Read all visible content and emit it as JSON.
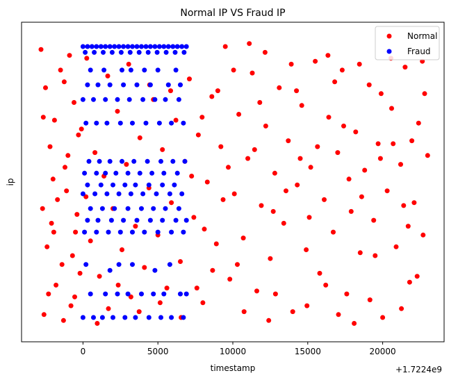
{
  "chart_data": {
    "type": "scatter",
    "title": "Normal IP VS Fraud IP",
    "xlabel": "timestamp",
    "ylabel": "ip",
    "x_offset_label": "+1.7224e9",
    "x_ticks": [
      "0",
      "5000",
      "10000",
      "15000",
      "20000"
    ],
    "xlim": [
      -4100,
      24100
    ],
    "y_ticks_shown": false,
    "grid": false,
    "legend": "top-right",
    "series": [
      {
        "name": "Normal",
        "color": "#ff0000",
        "points": [
          [
            -2800,
            0.95
          ],
          [
            -2500,
            0.82
          ],
          [
            -2200,
            0.62
          ],
          [
            -1900,
            0.71
          ],
          [
            -1500,
            0.88
          ],
          [
            -1200,
            0.55
          ],
          [
            -900,
            0.93
          ],
          [
            -600,
            0.77
          ],
          [
            -300,
            0.66
          ],
          [
            -2700,
            0.41
          ],
          [
            -2400,
            0.28
          ],
          [
            -2100,
            0.36
          ],
          [
            -1800,
            0.15
          ],
          [
            -1400,
            0.22
          ],
          [
            -1100,
            0.47
          ],
          [
            -800,
            0.08
          ],
          [
            -500,
            0.33
          ],
          [
            -200,
            0.19
          ],
          [
            -2600,
            0.05
          ],
          [
            -2300,
            0.12
          ],
          [
            -2000,
            0.51
          ],
          [
            -1700,
            0.44
          ],
          [
            -1300,
            0.03
          ],
          [
            -1000,
            0.59
          ],
          [
            -700,
            0.25
          ],
          [
            -400,
            0.39
          ],
          [
            -100,
            0.68
          ],
          [
            200,
            0.45
          ],
          [
            500,
            0.3
          ],
          [
            800,
            0.6
          ],
          [
            1100,
            0.18
          ],
          [
            1400,
            0.52
          ],
          [
            1700,
            0.07
          ],
          [
            2000,
            0.41
          ],
          [
            2300,
            0.74
          ],
          [
            2600,
            0.27
          ],
          [
            2900,
            0.56
          ],
          [
            3200,
            0.11
          ],
          [
            3500,
            0.35
          ],
          [
            3800,
            0.65
          ],
          [
            4100,
            0.21
          ],
          [
            4400,
            0.48
          ],
          [
            4700,
            0.78
          ],
          [
            5000,
            0.32
          ],
          [
            5300,
            0.61
          ],
          [
            5600,
            0.14
          ],
          [
            5900,
            0.43
          ],
          [
            6200,
            0.71
          ],
          [
            6500,
            0.23
          ],
          [
            6800,
            0.57
          ],
          [
            7100,
            0.85
          ],
          [
            7400,
            0.38
          ],
          [
            7700,
            0.66
          ],
          [
            8000,
            0.09
          ],
          [
            8300,
            0.5
          ],
          [
            8600,
            0.79
          ],
          [
            8900,
            0.29
          ],
          [
            9200,
            0.62
          ],
          [
            9500,
            0.96
          ],
          [
            9800,
            0.17
          ],
          [
            10100,
            0.46
          ],
          [
            10400,
            0.73
          ],
          [
            10700,
            0.31
          ],
          [
            11000,
            0.58
          ],
          [
            11300,
            0.87
          ],
          [
            11600,
            0.13
          ],
          [
            11900,
            0.42
          ],
          [
            12200,
            0.69
          ],
          [
            12500,
            0.24
          ],
          [
            12800,
            0.53
          ],
          [
            13100,
            0.82
          ],
          [
            13400,
            0.36
          ],
          [
            13700,
            0.64
          ],
          [
            14000,
            0.06
          ],
          [
            14300,
            0.49
          ],
          [
            14600,
            0.76
          ],
          [
            14900,
            0.27
          ],
          [
            15200,
            0.55
          ],
          [
            15500,
            0.91
          ],
          [
            15800,
            0.19
          ],
          [
            16100,
            0.44
          ],
          [
            16400,
            0.72
          ],
          [
            16700,
            0.33
          ],
          [
            17000,
            0.6
          ],
          [
            17300,
            0.88
          ],
          [
            17600,
            0.12
          ],
          [
            17900,
            0.4
          ],
          [
            18200,
            0.67
          ],
          [
            18500,
            0.26
          ],
          [
            18800,
            0.54
          ],
          [
            19100,
            0.83
          ],
          [
            19400,
            0.37
          ],
          [
            19700,
            0.63
          ],
          [
            20000,
            0.04
          ],
          [
            20300,
            0.47
          ],
          [
            20600,
            0.75
          ],
          [
            20900,
            0.28
          ],
          [
            21200,
            0.56
          ],
          [
            21500,
            0.89
          ],
          [
            21800,
            0.16
          ],
          [
            22100,
            0.43
          ],
          [
            22400,
            0.7
          ],
          [
            22700,
            0.32
          ],
          [
            23000,
            0.59
          ],
          [
            -2650,
            0.72
          ],
          [
            -1950,
            0.33
          ],
          [
            -1250,
            0.84
          ],
          [
            -550,
            0.11
          ],
          [
            250,
            0.92
          ],
          [
            950,
            0.02
          ],
          [
            1650,
            0.86
          ],
          [
            2350,
            0.15
          ],
          [
            3050,
            0.9
          ],
          [
            3750,
            0.06
          ],
          [
            4450,
            0.83
          ],
          [
            5150,
            0.09
          ],
          [
            5850,
            0.81
          ],
          [
            6550,
            0.04
          ],
          [
            7250,
            0.52
          ],
          [
            7950,
            0.72
          ],
          [
            8650,
            0.2
          ],
          [
            9350,
            0.44
          ],
          [
            10050,
            0.88
          ],
          [
            10750,
            0.06
          ],
          [
            11450,
            0.61
          ],
          [
            12150,
            0.94
          ],
          [
            12850,
            0.12
          ],
          [
            13550,
            0.47
          ],
          [
            14250,
            0.81
          ],
          [
            14950,
            0.08
          ],
          [
            15650,
            0.62
          ],
          [
            16350,
            0.93
          ],
          [
            17050,
            0.05
          ],
          [
            17750,
            0.51
          ],
          [
            18450,
            0.9
          ],
          [
            19150,
            0.1
          ],
          [
            19850,
            0.58
          ],
          [
            20550,
            0.92
          ],
          [
            21250,
            0.07
          ],
          [
            21950,
            0.64
          ],
          [
            22650,
            0.91
          ],
          [
            8100,
            0.34
          ],
          [
            9000,
            0.81
          ],
          [
            10300,
            0.22
          ],
          [
            11800,
            0.77
          ],
          [
            12700,
            0.4
          ],
          [
            13900,
            0.9
          ],
          [
            15100,
            0.38
          ],
          [
            16200,
            0.15
          ],
          [
            17400,
            0.69
          ],
          [
            18600,
            0.45
          ],
          [
            19500,
            0.25
          ],
          [
            20700,
            0.63
          ],
          [
            21700,
            0.35
          ],
          [
            22800,
            0.8
          ],
          [
            7600,
            0.14
          ],
          [
            9700,
            0.55
          ],
          [
            11100,
            0.97
          ],
          [
            12400,
            0.03
          ],
          [
            14500,
            0.58
          ],
          [
            16800,
            0.84
          ],
          [
            18100,
            0.02
          ],
          [
            19900,
            0.8
          ],
          [
            21400,
            0.42
          ],
          [
            22300,
            0.18
          ]
        ]
      },
      {
        "name": "Fraud",
        "color": "#0000ff",
        "points": [
          [
            0,
            0.96
          ],
          [
            300,
            0.96
          ],
          [
            600,
            0.96
          ],
          [
            900,
            0.96
          ],
          [
            1200,
            0.96
          ],
          [
            1500,
            0.96
          ],
          [
            1800,
            0.96
          ],
          [
            2100,
            0.96
          ],
          [
            2400,
            0.96
          ],
          [
            2700,
            0.96
          ],
          [
            3000,
            0.96
          ],
          [
            3300,
            0.96
          ],
          [
            3600,
            0.96
          ],
          [
            3900,
            0.96
          ],
          [
            4200,
            0.96
          ],
          [
            4500,
            0.96
          ],
          [
            4800,
            0.96
          ],
          [
            5100,
            0.96
          ],
          [
            5400,
            0.96
          ],
          [
            5700,
            0.96
          ],
          [
            6000,
            0.96
          ],
          [
            6300,
            0.96
          ],
          [
            6600,
            0.96
          ],
          [
            6900,
            0.96
          ],
          [
            150,
            0.94
          ],
          [
            750,
            0.94
          ],
          [
            1350,
            0.94
          ],
          [
            1950,
            0.94
          ],
          [
            2550,
            0.94
          ],
          [
            3150,
            0.94
          ],
          [
            3750,
            0.94
          ],
          [
            4350,
            0.94
          ],
          [
            4950,
            0.94
          ],
          [
            5550,
            0.94
          ],
          [
            6150,
            0.94
          ],
          [
            6750,
            0.94
          ],
          [
            500,
            0.88
          ],
          [
            1400,
            0.88
          ],
          [
            2600,
            0.88
          ],
          [
            3200,
            0.88
          ],
          [
            4100,
            0.88
          ],
          [
            5000,
            0.88
          ],
          [
            6200,
            0.88
          ],
          [
            300,
            0.83
          ],
          [
            1000,
            0.83
          ],
          [
            1800,
            0.83
          ],
          [
            2700,
            0.83
          ],
          [
            3600,
            0.83
          ],
          [
            4500,
            0.83
          ],
          [
            5700,
            0.83
          ],
          [
            6500,
            0.83
          ],
          [
            0,
            0.78
          ],
          [
            700,
            0.78
          ],
          [
            1500,
            0.78
          ],
          [
            2300,
            0.78
          ],
          [
            3100,
            0.78
          ],
          [
            4000,
            0.78
          ],
          [
            4800,
            0.78
          ],
          [
            5500,
            0.78
          ],
          [
            6400,
            0.78
          ],
          [
            200,
            0.7
          ],
          [
            900,
            0.7
          ],
          [
            1600,
            0.7
          ],
          [
            2500,
            0.7
          ],
          [
            3300,
            0.7
          ],
          [
            4200,
            0.7
          ],
          [
            5100,
            0.7
          ],
          [
            5900,
            0.7
          ],
          [
            6700,
            0.7
          ],
          [
            400,
            0.57
          ],
          [
            1100,
            0.57
          ],
          [
            1800,
            0.57
          ],
          [
            2600,
            0.57
          ],
          [
            3400,
            0.57
          ],
          [
            4300,
            0.57
          ],
          [
            5200,
            0.57
          ],
          [
            6000,
            0.57
          ],
          [
            6800,
            0.57
          ],
          [
            100,
            0.53
          ],
          [
            900,
            0.53
          ],
          [
            1500,
            0.53
          ],
          [
            2200,
            0.53
          ],
          [
            3000,
            0.53
          ],
          [
            3800,
            0.53
          ],
          [
            4600,
            0.53
          ],
          [
            5400,
            0.53
          ],
          [
            6300,
            0.53
          ],
          [
            300,
            0.49
          ],
          [
            1200,
            0.49
          ],
          [
            2000,
            0.49
          ],
          [
            2800,
            0.49
          ],
          [
            3500,
            0.49
          ],
          [
            4400,
            0.49
          ],
          [
            5300,
            0.49
          ],
          [
            6100,
            0.49
          ],
          [
            0,
            0.46
          ],
          [
            800,
            0.46
          ],
          [
            1600,
            0.46
          ],
          [
            2400,
            0.46
          ],
          [
            3200,
            0.46
          ],
          [
            4000,
            0.46
          ],
          [
            4900,
            0.46
          ],
          [
            5800,
            0.46
          ],
          [
            6600,
            0.46
          ],
          [
            500,
            0.41
          ],
          [
            1300,
            0.41
          ],
          [
            2100,
            0.41
          ],
          [
            3000,
            0.41
          ],
          [
            3900,
            0.41
          ],
          [
            4700,
            0.41
          ],
          [
            5500,
            0.41
          ],
          [
            6400,
            0.41
          ],
          [
            300,
            0.37
          ],
          [
            1000,
            0.37
          ],
          [
            1900,
            0.37
          ],
          [
            2700,
            0.37
          ],
          [
            3600,
            0.37
          ],
          [
            4500,
            0.37
          ],
          [
            5300,
            0.37
          ],
          [
            6200,
            0.37
          ],
          [
            6900,
            0.37
          ],
          [
            100,
            0.33
          ],
          [
            900,
            0.33
          ],
          [
            1700,
            0.33
          ],
          [
            2500,
            0.33
          ],
          [
            3300,
            0.33
          ],
          [
            4100,
            0.33
          ],
          [
            5000,
            0.33
          ],
          [
            5900,
            0.33
          ],
          [
            6700,
            0.33
          ],
          [
            200,
            0.22
          ],
          [
            1800,
            0.2
          ],
          [
            2400,
            0.22
          ],
          [
            3300,
            0.22
          ],
          [
            4800,
            0.2
          ],
          [
            5800,
            0.22
          ],
          [
            500,
            0.12
          ],
          [
            1500,
            0.12
          ],
          [
            2300,
            0.12
          ],
          [
            3000,
            0.12
          ],
          [
            3900,
            0.12
          ],
          [
            4700,
            0.12
          ],
          [
            5400,
            0.12
          ],
          [
            6500,
            0.12
          ],
          [
            6900,
            0.12
          ],
          [
            0,
            0.04
          ],
          [
            700,
            0.04
          ],
          [
            1300,
            0.04
          ],
          [
            2000,
            0.04
          ],
          [
            2800,
            0.04
          ],
          [
            3500,
            0.04
          ],
          [
            4400,
            0.04
          ],
          [
            5200,
            0.04
          ],
          [
            5900,
            0.04
          ],
          [
            6700,
            0.04
          ]
        ]
      }
    ]
  }
}
